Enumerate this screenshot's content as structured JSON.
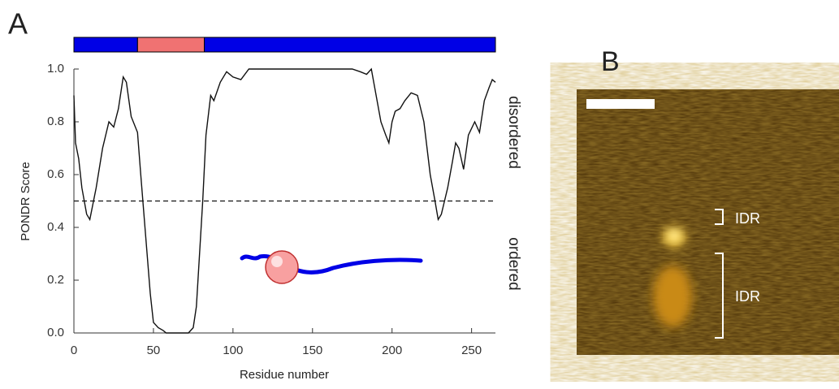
{
  "chart_data": {
    "type": "line",
    "x_label": "Residue number",
    "y_label": "PONDR Score",
    "annotations": [
      "disordered",
      "ordered"
    ],
    "x": [
      0,
      1,
      3,
      5,
      8,
      10,
      14,
      18,
      22,
      25,
      28,
      31,
      33,
      36,
      40,
      42,
      44,
      46,
      48,
      50,
      53,
      56,
      58,
      72,
      75,
      77,
      79,
      81,
      83,
      86,
      88,
      92,
      96,
      100,
      105,
      110,
      120,
      150,
      175,
      180,
      184,
      187,
      190,
      193,
      196,
      198,
      200,
      202,
      205,
      208,
      212,
      216,
      220,
      224,
      227,
      229,
      231,
      233,
      235,
      238,
      240,
      242,
      245,
      248,
      252,
      255,
      258,
      261,
      263,
      265
    ],
    "values": [
      0.9,
      0.72,
      0.66,
      0.55,
      0.45,
      0.43,
      0.55,
      0.7,
      0.8,
      0.78,
      0.85,
      0.97,
      0.95,
      0.82,
      0.76,
      0.6,
      0.45,
      0.3,
      0.15,
      0.04,
      0.02,
      0.01,
      0,
      0,
      0.02,
      0.1,
      0.3,
      0.5,
      0.75,
      0.9,
      0.88,
      0.95,
      0.99,
      0.97,
      0.96,
      1,
      1,
      1,
      1,
      0.99,
      0.98,
      1,
      0.9,
      0.8,
      0.75,
      0.72,
      0.8,
      0.84,
      0.85,
      0.88,
      0.91,
      0.9,
      0.8,
      0.6,
      0.5,
      0.43,
      0.45,
      0.5,
      0.55,
      0.65,
      0.72,
      0.7,
      0.62,
      0.75,
      0.8,
      0.76,
      0.88,
      0.93,
      0.96,
      0.95
    ],
    "color": "#111111",
    "threshold": 0.5,
    "domains": [
      {
        "start": 0,
        "end": 40,
        "color": "#0000e6"
      },
      {
        "start": 40,
        "end": 82,
        "color": "#f07272"
      },
      {
        "start": 82,
        "end": 265,
        "color": "#0000e6"
      }
    ],
    "xlim": [
      0,
      265
    ],
    "xticks": [
      0,
      50,
      100,
      150,
      200,
      250
    ],
    "ylim": [
      0,
      1
    ],
    "yticks": [
      {
        "value": 0,
        "label": "0.0"
      },
      0.2,
      0.4,
      0.6,
      0.8,
      {
        "value": 1,
        "label": "1.0"
      }
    ]
  },
  "panels": {
    "a_label": "A",
    "b_label": "B",
    "idr_labels": [
      "IDR",
      "IDR"
    ]
  }
}
